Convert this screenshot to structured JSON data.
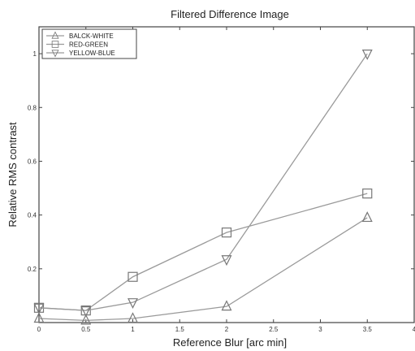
{
  "chart_data": {
    "type": "line",
    "title": "Filtered Difference Image",
    "xlabel": "Reference Blur [arc min]",
    "ylabel": "Relative RMS contrast",
    "xlim": [
      0,
      4
    ],
    "ylim": [
      0,
      1.1
    ],
    "x": [
      0,
      0.5,
      1,
      2,
      3.5
    ],
    "xticks": [
      0,
      0.5,
      1,
      1.5,
      2,
      2.5,
      3,
      3.5,
      4
    ],
    "xtick_labels": [
      "0",
      "0.5",
      "1",
      "1.5",
      "2",
      "2.5",
      "3",
      "3.5",
      "4"
    ],
    "yticks": [
      0.2,
      0.4,
      0.6,
      0.8,
      1
    ],
    "ytick_labels": [
      "0.2",
      "0.4",
      "0.6",
      "0.8",
      "1"
    ],
    "grid": false,
    "legend_position": "top-left",
    "series": [
      {
        "name": "BALCK-WHITE",
        "marker": "triangle-up",
        "values": [
          0.015,
          0.008,
          0.015,
          0.06,
          0.39
        ]
      },
      {
        "name": "RED-GREEN",
        "marker": "square",
        "values": [
          0.055,
          0.045,
          0.17,
          0.335,
          0.48
        ]
      },
      {
        "name": "YELLOW-BLUE",
        "marker": "triangle-down",
        "values": [
          0.055,
          0.045,
          0.075,
          0.235,
          1.0
        ]
      }
    ]
  }
}
